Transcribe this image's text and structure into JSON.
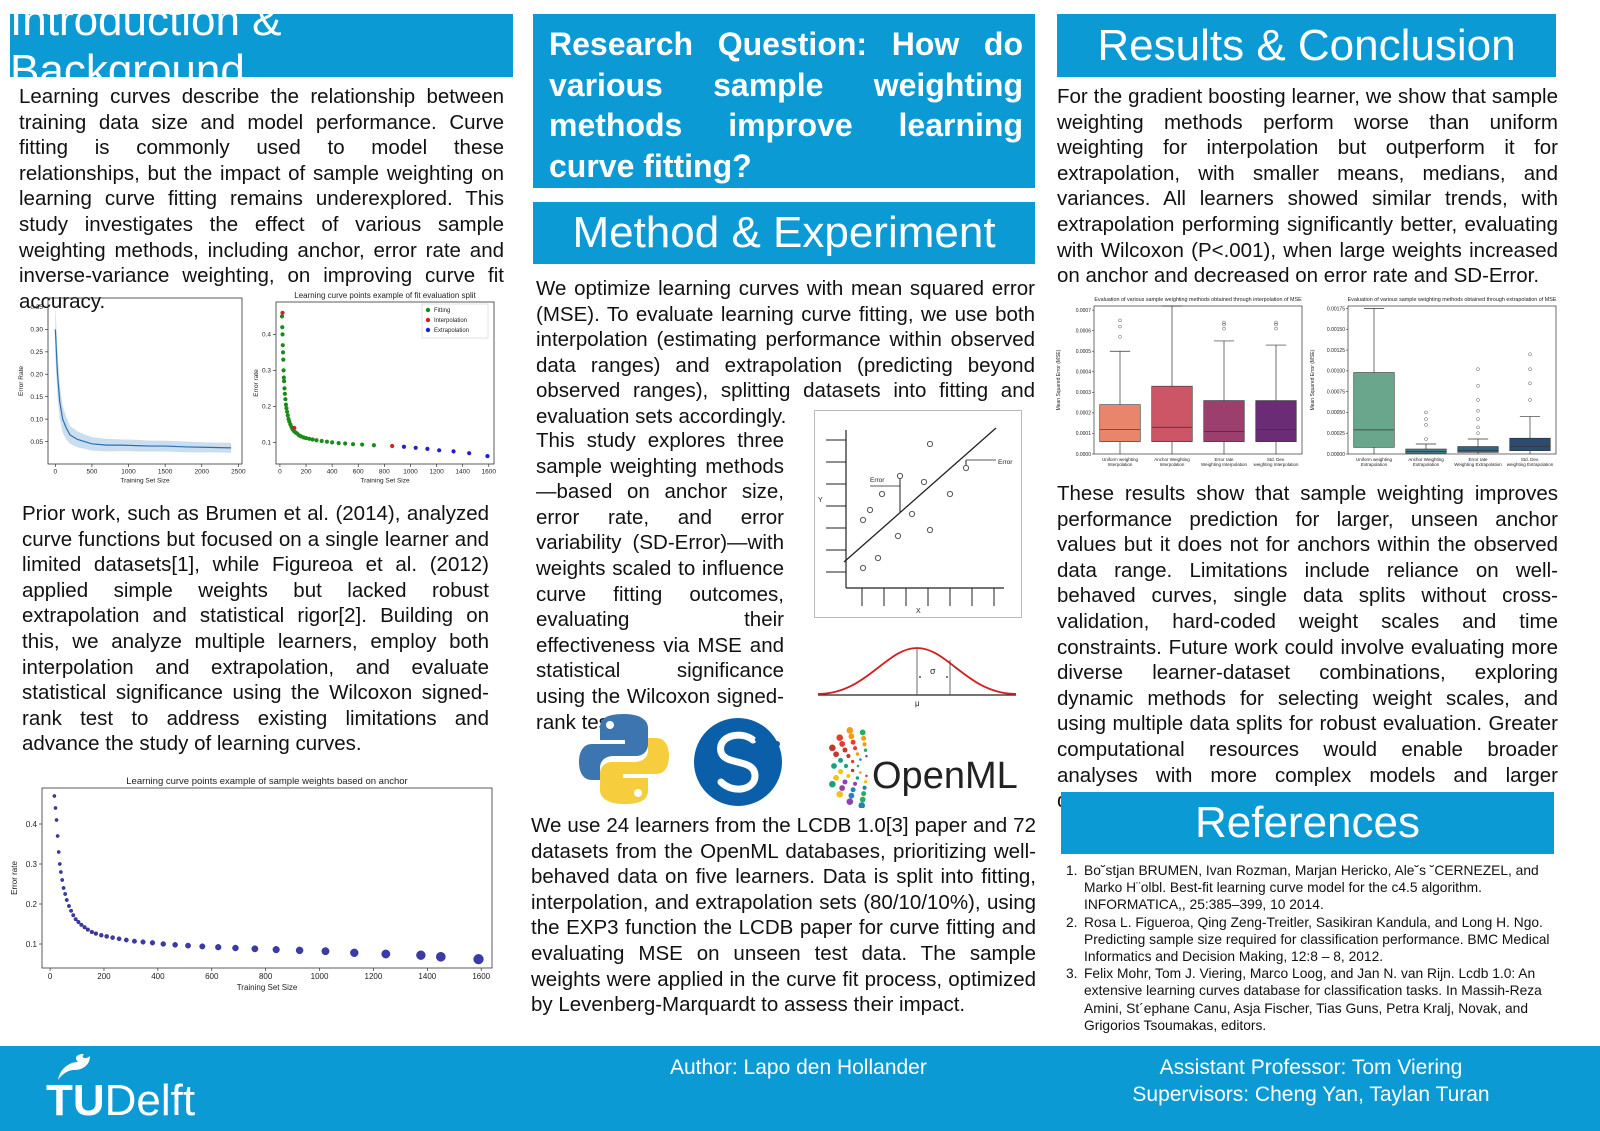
{
  "intro": {
    "title": "Introduction & Background",
    "para1": "Learning curves describe the relationship between training data size and model performance. Curve fitting is commonly used to model these relationships, but the impact of sample weighting on learning curve fitting remains underexplored. This study investigates the effect of various sample weighting methods, including anchor, error rate and inverse-variance weighting, on improving curve fit accuracy.",
    "para2": "Prior work, such as Brumen et al. (2014), analyzed curve functions but focused on a single learner and limited datasets[1], while Figureoa et al. (2012) applied simple weights but lacked robust extrapolation and statistical rigor[2]. Building on this, we analyze multiple learners, employ both interpolation and extrapolation, and evaluate statistical significance using the Wilcoxon signed-rank test to address existing limitations and advance the study of learning curves."
  },
  "research_question": "Research Question: How do various sample weighting methods improve learning curve fitting?",
  "method": {
    "title": "Method & Experiment",
    "para1": "We optimize learning curves with mean squared error (MSE). To evaluate learning curve fitting, we use both interpolation (estimating performance within observed data ranges) and extrapolation (predicting beyond observed ranges), splitting datasets into fitting and evaluation sets accordingly.",
    "para2": "This study explores three sample weighting methods—based on anchor size, error rate, and error variability (SD-Error)—with weights scaled to influence curve fitting outcomes, evaluating their effectiveness via MSE and statistical significance using the Wilcoxon signed-rank test.",
    "para3": "We use 24 learners from the LCDB 1.0[3] paper and 72 datasets from the OpenML databases, prioritizing well-behaved data on five learners. Data is split into fitting, interpolation, and extrapolation sets (80/10/10%), using the EXP3 function the LCDB paper for curve fitting and evaluating MSE on unseen test data. The sample weights were applied in the curve fit process, optimized by Levenberg-Marquardt to assess their impact.",
    "regression_labels": {
      "error_left": "Error",
      "error_right": "Error",
      "x": "X",
      "y": "Y"
    },
    "normal_labels": {
      "mu": "μ",
      "sigma": "σ"
    },
    "openml_label": "OpenML"
  },
  "results": {
    "title": "Results & Conclusion",
    "para1": "For the gradient boosting learner, we show that sample weighting methods perform worse than uniform weighting for interpolation but outperform it for extrapolation, with smaller means, medians, and variances. All learners showed similar trends, with extrapolation performing significantly better, evaluating with Wilcoxon (P<.001), when large weights increased on anchor and decreased on error rate and SD-Error.",
    "para2": "These results show that sample weighting improves performance prediction for larger, unseen anchor values but it does not for anchors within the observed data range. Limitations include reliance on well-behaved curves, single data splits without cross-validation, hard-coded weight scales and time constraints. Future work could involve evaluating more diverse learner-dataset combinations, exploring dynamic methods for selecting weight scales, and using multiple data splits for robust evaluation. Greater computational resources would enable broader analyses with more complex models and larger datasets."
  },
  "references": {
    "title": "References",
    "items": [
      {
        "n": "1.",
        "text": "Bo˘stjan BRUMEN, Ivan Rozman, Marjan Hericko, Ale˘s ˘CERNEZEL, and Marko H¨olbl. Best-fit learning curve model for the c4.5 algorithm. INFORMATICA,, 25:385–399, 10 2014."
      },
      {
        "n": "2.",
        "text": "Rosa L. Figueroa, Qing Zeng-Treitler, Sasikiran Kandula, and Long H. Ngo. Predicting sample size required for classification performance. BMC Medical Informatics and Decision Making, 12:8 – 8, 2012."
      },
      {
        "n": "3.",
        "text": "Felix Mohr, Tom J. Viering, Marco Loog, and Jan N. van Rijn. Lcdb 1.0: An extensive learning curves database for classification tasks. In Massih-Reza Amini, St´ephane Canu, Asja Fischer, Tias Guns, Petra Kralj, Novak, and Grigorios Tsoumakas, editors."
      }
    ]
  },
  "footer": {
    "logo_tu": "TU",
    "logo_delft": "Delft",
    "author": "Author: Lapo den Hollander",
    "assistant": "Assistant Professor: Tom Viering",
    "supervisors": "Supervisors: Cheng Yan, Taylan Turan"
  },
  "colors": {
    "accent": "#0c9ad4"
  },
  "chart_data": [
    {
      "id": "error-curve",
      "type": "line",
      "title": "",
      "xlabel": "Training Set Size",
      "ylabel": "Error Rate",
      "xlim": [
        -100,
        2550
      ],
      "ylim": [
        0,
        0.37
      ],
      "xticks": [
        0,
        500,
        1000,
        1500,
        2000,
        2500
      ],
      "yticks": [
        0.05,
        0.1,
        0.15,
        0.2,
        0.25,
        0.3,
        0.35
      ],
      "x": [
        0,
        30,
        60,
        100,
        150,
        200,
        300,
        400,
        500,
        700,
        900,
        1100,
        1300,
        1500,
        1800,
        2100,
        2400
      ],
      "y": [
        0.3,
        0.2,
        0.14,
        0.1,
        0.08,
        0.065,
        0.055,
        0.05,
        0.045,
        0.042,
        0.042,
        0.041,
        0.04,
        0.04,
        0.038,
        0.037,
        0.036
      ],
      "band": [
        0.06,
        0.05,
        0.04,
        0.03,
        0.025,
        0.02,
        0.018,
        0.016,
        0.015,
        0.014,
        0.013,
        0.013,
        0.012,
        0.012,
        0.012,
        0.011,
        0.011
      ]
    },
    {
      "id": "fit-split",
      "type": "scatter",
      "title": "Learning curve points example of fit evaluation split",
      "xlabel": "Training Set Size",
      "ylabel": "Error rate",
      "xlim": [
        -30,
        1640
      ],
      "ylim": [
        0.04,
        0.49
      ],
      "xticks": [
        0,
        200,
        400,
        600,
        800,
        1000,
        1200,
        1400,
        1600
      ],
      "yticks": [
        0.1,
        0.2,
        0.3,
        0.4
      ],
      "legend": [
        "Fitting",
        "Interpolation",
        "Extrapolation"
      ],
      "legend_position": "top-right",
      "series": [
        {
          "name": "Fitting",
          "color": "#1a8a1a",
          "x": [
            16,
            18,
            20,
            22,
            24,
            26,
            28,
            30,
            32,
            35,
            38,
            42,
            46,
            50,
            55,
            60,
            66,
            72,
            80,
            88,
            96,
            106,
            118,
            130,
            145,
            160,
            180,
            200,
            225,
            250,
            280,
            320,
            360,
            400,
            450,
            500,
            560,
            630,
            720
          ],
          "y": [
            0.45,
            0.42,
            0.4,
            0.37,
            0.35,
            0.33,
            0.3,
            0.28,
            0.27,
            0.25,
            0.235,
            0.22,
            0.205,
            0.195,
            0.185,
            0.175,
            0.165,
            0.158,
            0.15,
            0.143,
            0.137,
            0.132,
            0.128,
            0.125,
            0.12,
            0.117,
            0.114,
            0.112,
            0.11,
            0.108,
            0.106,
            0.104,
            0.102,
            0.1,
            0.098,
            0.097,
            0.095,
            0.094,
            0.092
          ]
        },
        {
          "name": "Interpolation",
          "color": "#d42020",
          "x": [
            20,
            110,
            860
          ],
          "y": [
            0.46,
            0.14,
            0.09
          ]
        },
        {
          "name": "Extrapolation",
          "color": "#2020c8",
          "x": [
            950,
            1040,
            1130,
            1220,
            1330,
            1450,
            1590
          ],
          "y": [
            0.088,
            0.085,
            0.082,
            0.078,
            0.075,
            0.07,
            0.062
          ]
        }
      ]
    },
    {
      "id": "anchor-weights",
      "type": "scatter",
      "title": "Learning curve points example of sample weights based on anchor",
      "xlabel": "Training Set Size",
      "ylabel": "Error rate",
      "xlim": [
        -30,
        1640
      ],
      "ylim": [
        0.04,
        0.49
      ],
      "xticks": [
        0,
        200,
        400,
        600,
        800,
        1000,
        1200,
        1400,
        1600
      ],
      "yticks": [
        0.1,
        0.2,
        0.3,
        0.4
      ],
      "x": [
        16,
        20,
        24,
        28,
        32,
        36,
        40,
        45,
        50,
        56,
        62,
        70,
        78,
        86,
        95,
        105,
        116,
        128,
        140,
        155,
        170,
        190,
        210,
        232,
        256,
        283,
        313,
        345,
        380,
        420,
        464,
        512,
        565,
        624,
        688,
        760,
        839,
        926,
        1022,
        1129,
        1246,
        1376,
        1450,
        1590
      ],
      "y": [
        0.47,
        0.44,
        0.41,
        0.37,
        0.33,
        0.3,
        0.28,
        0.26,
        0.24,
        0.225,
        0.21,
        0.195,
        0.183,
        0.172,
        0.162,
        0.155,
        0.148,
        0.142,
        0.136,
        0.13,
        0.126,
        0.122,
        0.119,
        0.116,
        0.113,
        0.11,
        0.107,
        0.105,
        0.103,
        0.1,
        0.098,
        0.096,
        0.094,
        0.092,
        0.09,
        0.088,
        0.086,
        0.084,
        0.082,
        0.078,
        0.075,
        0.072,
        0.068,
        0.062
      ]
    },
    {
      "id": "box-interp",
      "type": "box",
      "title": "Evaluation of various sample weighting methods obtained through interpolation of MSE",
      "ylabel": "Mean Squared Error (MSE)",
      "ylim": [
        0,
        0.00072
      ],
      "yticks": [
        0,
        0.0001,
        0.0002,
        0.0003,
        0.0004,
        0.0005,
        0.0006,
        0.0007
      ],
      "ytick_labels": [
        "0.0000",
        "0.0001",
        "0.0002",
        "0.0003",
        "0.0004",
        "0.0005",
        "0.0006",
        "0.0007"
      ],
      "categories": [
        "Uniform weighting Interpolation",
        "Anchor Weighting Interpolation",
        "Error rate Weighting Interpolation",
        "Std. Dev. weighting Interpolation"
      ],
      "colors": [
        "#e8856a",
        "#cc5665",
        "#9c3f6e",
        "#6a2c74"
      ],
      "boxes": [
        {
          "whisker_low": 0.0,
          "q1": 6e-05,
          "median": 0.00012,
          "q3": 0.00024,
          "whisker_high": 0.0005,
          "outliers": [
            0.00057,
            0.00062,
            0.00065
          ]
        },
        {
          "whisker_low": 0.0,
          "q1": 6e-05,
          "median": 0.00013,
          "q3": 0.00033,
          "whisker_high": 0.00072,
          "outliers": []
        },
        {
          "whisker_low": 0.0,
          "q1": 6e-05,
          "median": 0.00011,
          "q3": 0.00026,
          "whisker_high": 0.00055,
          "outliers": [
            0.00061,
            0.00063,
            0.00064
          ]
        },
        {
          "whisker_low": 0.0,
          "q1": 6e-05,
          "median": 0.00012,
          "q3": 0.00026,
          "whisker_high": 0.00053,
          "outliers": [
            0.00061,
            0.00063,
            0.00064
          ]
        }
      ]
    },
    {
      "id": "box-extrap",
      "type": "box",
      "title": "Evaluation of various sample weighting methods obtained through extrapolation of MSE",
      "ylabel": "Mean Squared Error (MSE)",
      "ylim": [
        0,
        0.00178
      ],
      "yticks": [
        0,
        0.00025,
        0.0005,
        0.00075,
        0.001,
        0.00125,
        0.0015,
        0.00175
      ],
      "ytick_labels": [
        "0.00000",
        "0.00025",
        "0.00050",
        "0.00075",
        "0.00100",
        "0.00125",
        "0.00150",
        "0.00175"
      ],
      "categories": [
        "Uniform weighting Extrapolation",
        "Anchor Weighting Extrapolation",
        "Error rate Weighting Extrapolation",
        "Std. Dev. weighting Extrapolation"
      ],
      "colors": [
        "#6aa68c",
        "#3f7f8a",
        "#2e6586",
        "#2b4b73"
      ],
      "boxes": [
        {
          "whisker_low": 0.0,
          "q1": 8e-05,
          "median": 0.00029,
          "q3": 0.00098,
          "whisker_high": 0.00175,
          "outliers": []
        },
        {
          "whisker_low": 0.0,
          "q1": 1e-05,
          "median": 3e-05,
          "q3": 6e-05,
          "whisker_high": 0.00012,
          "outliers": [
            0.00018,
            0.00035,
            0.00042,
            0.0005
          ]
        },
        {
          "whisker_low": 0.0,
          "q1": 2e-05,
          "median": 4e-05,
          "q3": 9e-05,
          "whisker_high": 0.00018,
          "outliers": [
            0.00025,
            0.00032,
            0.00042,
            0.00052,
            0.00065,
            0.00082,
            0.00102
          ]
        },
        {
          "whisker_low": 0.0,
          "q1": 4e-05,
          "median": 9e-05,
          "q3": 0.00019,
          "whisker_high": 0.00045,
          "outliers": [
            0.00065,
            0.00085,
            0.00102,
            0.0012
          ]
        }
      ]
    }
  ]
}
